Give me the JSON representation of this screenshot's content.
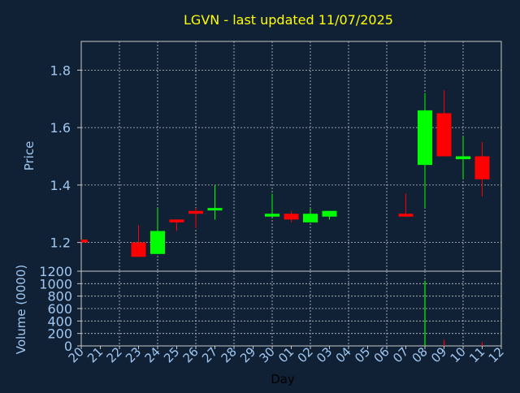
{
  "chart_data": [
    {
      "type": "candlestick",
      "title": "LGVN - last updated 11/07/2025",
      "ylabel": "Price",
      "ylim": [
        1.1,
        1.9
      ],
      "yticks": [
        "1.2",
        "1.4",
        "1.6",
        "1.8"
      ],
      "grid": true,
      "colors": {
        "up": "#00ff00",
        "down": "#ff0000",
        "axis_text": "#a0c8f0",
        "title": "#ffff00",
        "frame": "#c8c8c8",
        "grid": "#c8c8c8"
      },
      "candles": [
        {
          "day": "20",
          "open": 1.21,
          "close": 1.2,
          "high": 1.21,
          "low": 1.2
        },
        {
          "day": "23",
          "open": 1.2,
          "close": 1.15,
          "high": 1.26,
          "low": 1.15
        },
        {
          "day": "24",
          "open": 1.16,
          "close": 1.24,
          "high": 1.32,
          "low": 1.16
        },
        {
          "day": "25",
          "open": 1.28,
          "close": 1.27,
          "high": 1.28,
          "low": 1.24
        },
        {
          "day": "26",
          "open": 1.31,
          "close": 1.3,
          "high": 1.32,
          "low": 1.25
        },
        {
          "day": "27",
          "open": 1.315,
          "close": 1.32,
          "high": 1.4,
          "low": 1.28
        },
        {
          "day": "30",
          "open": 1.29,
          "close": 1.3,
          "high": 1.37,
          "low": 1.29
        },
        {
          "day": "01",
          "open": 1.3,
          "close": 1.28,
          "high": 1.31,
          "low": 1.27
        },
        {
          "day": "02",
          "open": 1.27,
          "close": 1.3,
          "high": 1.32,
          "low": 1.27
        },
        {
          "day": "03",
          "open": 1.29,
          "close": 1.31,
          "high": 1.31,
          "low": 1.28
        },
        {
          "day": "07",
          "open": 1.3,
          "close": 1.29,
          "high": 1.37,
          "low": 1.29
        },
        {
          "day": "08",
          "open": 1.47,
          "close": 1.66,
          "high": 1.72,
          "low": 1.32
        },
        {
          "day": "09",
          "open": 1.65,
          "close": 1.5,
          "high": 1.73,
          "low": 1.5
        },
        {
          "day": "10",
          "open": 1.49,
          "close": 1.5,
          "high": 1.57,
          "low": 1.42
        },
        {
          "day": "11",
          "open": 1.5,
          "close": 1.42,
          "high": 1.55,
          "low": 1.36
        }
      ]
    },
    {
      "type": "bar",
      "ylabel": "Volume (0000)",
      "xlabel": "Day",
      "ylim": [
        0,
        1200
      ],
      "yticks": [
        "0",
        "200",
        "400",
        "600",
        "800",
        "1000",
        "1200"
      ],
      "grid": true,
      "categories": [
        "20",
        "21",
        "22",
        "23",
        "24",
        "25",
        "26",
        "27",
        "28",
        "29",
        "30",
        "01",
        "02",
        "03",
        "04",
        "05",
        "06",
        "07",
        "08",
        "09",
        "10",
        "11",
        "12"
      ],
      "bars": [
        {
          "day": "08",
          "value": 1050,
          "color": "#00ff00"
        },
        {
          "day": "09",
          "value": 100,
          "color": "#ff0000"
        },
        {
          "day": "11",
          "value": 60,
          "color": "#ff0000"
        }
      ]
    }
  ]
}
